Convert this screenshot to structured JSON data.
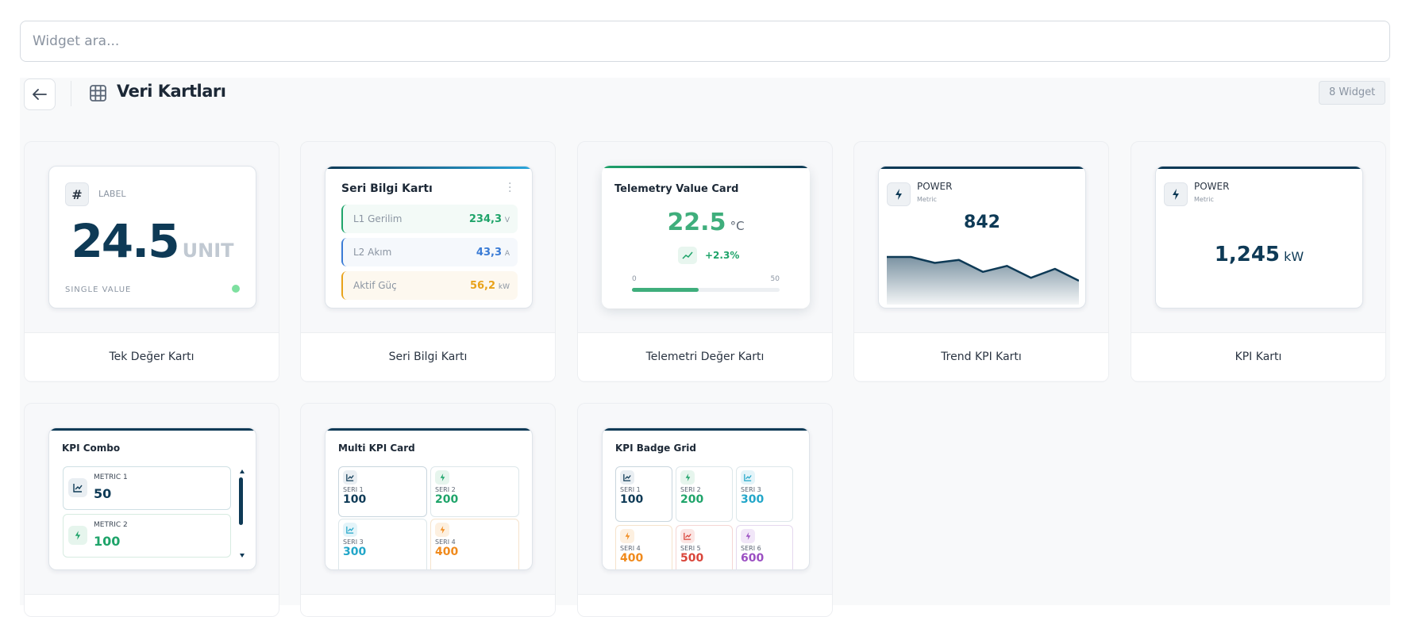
{
  "search": {
    "placeholder": "Widget ara..."
  },
  "header": {
    "title": "Veri Kartları",
    "count": "8 Widget"
  },
  "cards": [
    {
      "label": "Tek Değer Kartı",
      "preview": {
        "tag": "LABEL",
        "value": "24.5",
        "unit": "UNIT",
        "footer": "SINGLE VALUE",
        "status_color": "#7ee0a0"
      }
    },
    {
      "label": "Seri Bilgi Kartı",
      "preview": {
        "title": "Seri Bilgi Kartı",
        "rows": [
          {
            "name": "L1 Gerilim",
            "value": "234,3",
            "unit": "V",
            "color": "#1fa46a"
          },
          {
            "name": "L2 Akım",
            "value": "43,3",
            "unit": "A",
            "color": "#3a7bd5"
          },
          {
            "name": "Aktif Güç",
            "value": "56,2",
            "unit": "kW",
            "color": "#e8a21a"
          }
        ]
      }
    },
    {
      "label": "Telemetri Değer Kartı",
      "preview": {
        "title": "Telemetry Value Card",
        "value": "22.5",
        "unit": "°C",
        "delta": "+2.3%",
        "min": "0",
        "max": "50",
        "progress": 0.45
      }
    },
    {
      "label": "Trend KPI Kartı",
      "preview": {
        "name": "POWER",
        "sub": "Metric",
        "value": "842",
        "trend": [
          8,
          8,
          6,
          7,
          3,
          5,
          1,
          4,
          0
        ]
      }
    },
    {
      "label": "KPI Kartı",
      "preview": {
        "name": "POWER",
        "sub": "Metric",
        "value": "1,245",
        "unit": "kW"
      }
    },
    {
      "label": "",
      "preview": {
        "title": "KPI Combo",
        "metrics": [
          {
            "name": "METRIC 1",
            "value": "50",
            "color": "#0e3a56"
          },
          {
            "name": "METRIC 2",
            "value": "100",
            "color": "#1fa46a"
          }
        ]
      }
    },
    {
      "label": "",
      "preview": {
        "title": "Multi KPI Card",
        "metrics": [
          {
            "name": "SERI 1",
            "value": "100",
            "color": "#0e3a56"
          },
          {
            "name": "SERI 2",
            "value": "200",
            "color": "#1fa46a"
          },
          {
            "name": "SERI 3",
            "value": "300",
            "color": "#22a6c9"
          },
          {
            "name": "SERI 4",
            "value": "400",
            "color": "#f08a1c"
          }
        ]
      }
    },
    {
      "label": "",
      "preview": {
        "title": "KPI Badge Grid",
        "metrics": [
          {
            "name": "SERI 1",
            "value": "100",
            "color": "#0e3a56"
          },
          {
            "name": "SERI 2",
            "value": "200",
            "color": "#1fa46a"
          },
          {
            "name": "SERI 3",
            "value": "300",
            "color": "#22a6c9"
          },
          {
            "name": "SERI 4",
            "value": "400",
            "color": "#f08a1c"
          },
          {
            "name": "SERI 5",
            "value": "500",
            "color": "#d9453a"
          },
          {
            "name": "SERI 6",
            "value": "600",
            "color": "#9b4fc2"
          }
        ]
      }
    }
  ]
}
